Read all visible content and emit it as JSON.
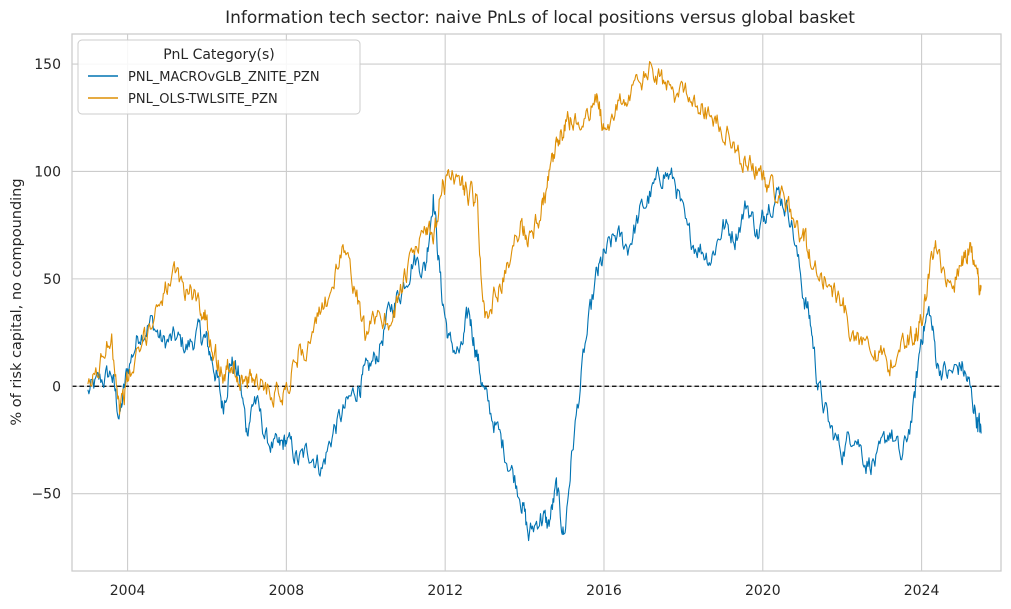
{
  "chart_data": {
    "type": "line",
    "title": "Information tech sector: naive PnLs of local positions versus global basket",
    "xlabel": "",
    "ylabel": "% of risk capital, no compounding",
    "xlim": [
      2002.6,
      2026.0
    ],
    "ylim": [
      -86,
      164
    ],
    "xticks": [
      2004,
      2008,
      2012,
      2016,
      2020,
      2024
    ],
    "xtick_labels": [
      "2004",
      "2008",
      "2012",
      "2016",
      "2020",
      "2024"
    ],
    "yticks": [
      -50,
      0,
      50,
      100,
      150
    ],
    "ytick_labels": [
      "−50",
      "0",
      "50",
      "100",
      "150"
    ],
    "grid": true,
    "reference_line": {
      "y": 0,
      "style": "dashed",
      "color": "#000000"
    },
    "legend": {
      "title": "PnL Category(s)",
      "placement": "top-left"
    },
    "series": [
      {
        "name": "PNL_MACROvGLB_ZNITE_PZN",
        "color": "#0173b2",
        "x": [
          2003.0,
          2003.3,
          2003.6,
          2003.8,
          2004.0,
          2004.3,
          2004.6,
          2004.9,
          2005.2,
          2005.5,
          2005.8,
          2006.0,
          2006.2,
          2006.4,
          2006.6,
          2006.8,
          2007.0,
          2007.2,
          2007.5,
          2007.8,
          2008.0,
          2008.3,
          2008.6,
          2008.9,
          2009.2,
          2009.5,
          2009.8,
          2010.0,
          2010.3,
          2010.6,
          2010.9,
          2011.2,
          2011.5,
          2011.7,
          2011.9,
          2012.1,
          2012.4,
          2012.6,
          2012.8,
          2013.0,
          2013.3,
          2013.6,
          2013.9,
          2014.1,
          2014.4,
          2014.6,
          2014.8,
          2015.0,
          2015.2,
          2015.5,
          2015.8,
          2016.0,
          2016.3,
          2016.6,
          2016.9,
          2017.2,
          2017.5,
          2017.8,
          2018.1,
          2018.4,
          2018.7,
          2019.0,
          2019.3,
          2019.6,
          2019.9,
          2020.1,
          2020.4,
          2020.7,
          2021.0,
          2021.2,
          2021.4,
          2021.7,
          2022.0,
          2022.3,
          2022.6,
          2022.9,
          2023.2,
          2023.5,
          2023.8,
          2024.0,
          2024.2,
          2024.4,
          2024.7,
          2025.0,
          2025.2,
          2025.4,
          2025.5
        ],
        "y": [
          -3,
          2,
          6,
          -15,
          8,
          25,
          30,
          20,
          22,
          18,
          25,
          20,
          8,
          -10,
          12,
          5,
          -20,
          -5,
          -25,
          -30,
          -25,
          -35,
          -30,
          -38,
          -20,
          -10,
          0,
          5,
          15,
          35,
          45,
          60,
          55,
          90,
          45,
          20,
          15,
          35,
          15,
          -5,
          -20,
          -35,
          -50,
          -70,
          -60,
          -65,
          -48,
          -70,
          -30,
          15,
          50,
          60,
          70,
          65,
          80,
          90,
          100,
          95,
          70,
          65,
          60,
          75,
          70,
          85,
          70,
          85,
          90,
          80,
          45,
          30,
          0,
          -20,
          -30,
          -20,
          -35,
          -35,
          -20,
          -35,
          -10,
          25,
          35,
          10,
          5,
          10,
          0,
          -15,
          -22
        ]
      },
      {
        "name": "PNL_OLS-TWLSITE_PZN",
        "color": "#de8f05",
        "x": [
          2003.0,
          2003.3,
          2003.6,
          2003.8,
          2004.0,
          2004.3,
          2004.6,
          2004.9,
          2005.2,
          2005.5,
          2005.8,
          2006.0,
          2006.2,
          2006.4,
          2006.6,
          2006.8,
          2007.0,
          2007.2,
          2007.5,
          2007.8,
          2008.0,
          2008.3,
          2008.6,
          2008.9,
          2009.2,
          2009.5,
          2009.8,
          2010.0,
          2010.3,
          2010.6,
          2010.9,
          2011.2,
          2011.5,
          2011.7,
          2011.9,
          2012.1,
          2012.4,
          2012.6,
          2012.8,
          2013.0,
          2013.3,
          2013.6,
          2013.9,
          2014.1,
          2014.4,
          2014.6,
          2014.8,
          2015.0,
          2015.2,
          2015.5,
          2015.8,
          2016.0,
          2016.3,
          2016.6,
          2016.9,
          2017.2,
          2017.5,
          2017.8,
          2018.1,
          2018.4,
          2018.7,
          2019.0,
          2019.3,
          2019.6,
          2019.9,
          2020.1,
          2020.4,
          2020.7,
          2021.0,
          2021.2,
          2021.4,
          2021.7,
          2022.0,
          2022.3,
          2022.6,
          2022.9,
          2023.2,
          2023.5,
          2023.8,
          2024.0,
          2024.2,
          2024.4,
          2024.7,
          2025.0,
          2025.2,
          2025.4,
          2025.5
        ],
        "y": [
          -3,
          10,
          25,
          -10,
          2,
          15,
          30,
          45,
          50,
          45,
          40,
          30,
          15,
          5,
          10,
          5,
          0,
          5,
          0,
          -3,
          0,
          15,
          20,
          35,
          50,
          65,
          40,
          20,
          35,
          30,
          45,
          60,
          75,
          65,
          90,
          100,
          95,
          90,
          85,
          30,
          45,
          55,
          75,
          70,
          80,
          95,
          110,
          120,
          125,
          120,
          135,
          120,
          130,
          135,
          140,
          148,
          140,
          135,
          140,
          130,
          125,
          120,
          110,
          105,
          100,
          95,
          90,
          80,
          70,
          60,
          55,
          45,
          40,
          20,
          25,
          15,
          10,
          20,
          25,
          30,
          55,
          65,
          45,
          55,
          65,
          50,
          47
        ]
      }
    ]
  }
}
